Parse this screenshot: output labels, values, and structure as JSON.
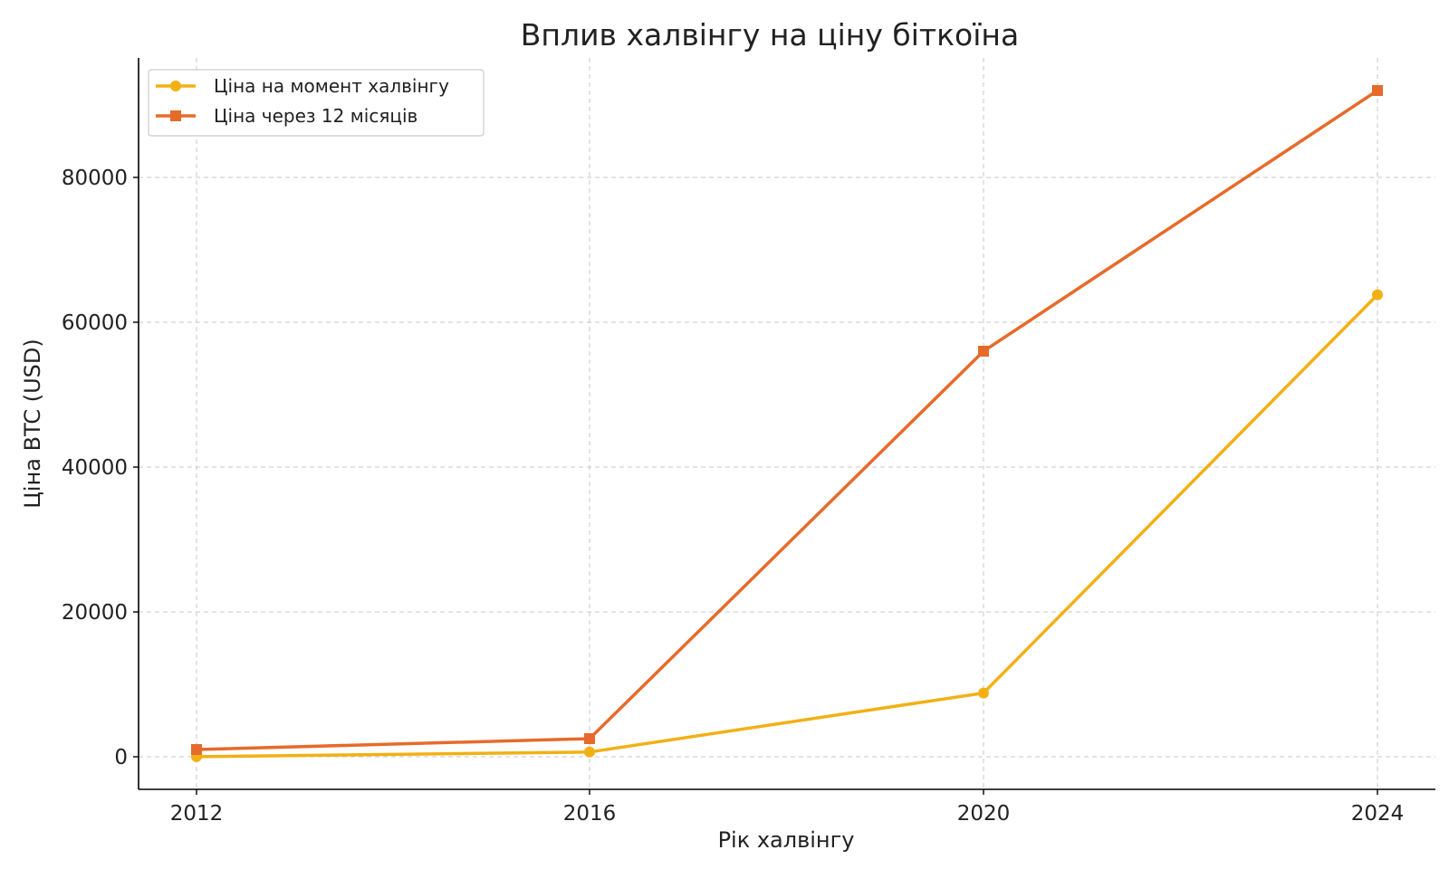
{
  "chart_data": {
    "type": "line",
    "title": "Вплив халвінгу на ціну біткоїна",
    "xlabel": "Рік халвінгу",
    "ylabel": "Ціна BTC (USD)",
    "categories": [
      "2012",
      "2016",
      "2020",
      "2024"
    ],
    "yticks": [
      0,
      20000,
      40000,
      60000,
      80000
    ],
    "ylim": [
      -4500,
      96500
    ],
    "grid": true,
    "legend_position": "top-left",
    "series": [
      {
        "name": "Ціна на момент халвінгу",
        "values": [
          12,
          650,
          8800,
          63800
        ],
        "color": "#F2B015",
        "marker": "circle"
      },
      {
        "name": "Ціна через 12 місяців",
        "values": [
          1000,
          2500,
          56000,
          92000
        ],
        "color": "#E66B2A",
        "marker": "square"
      }
    ]
  }
}
